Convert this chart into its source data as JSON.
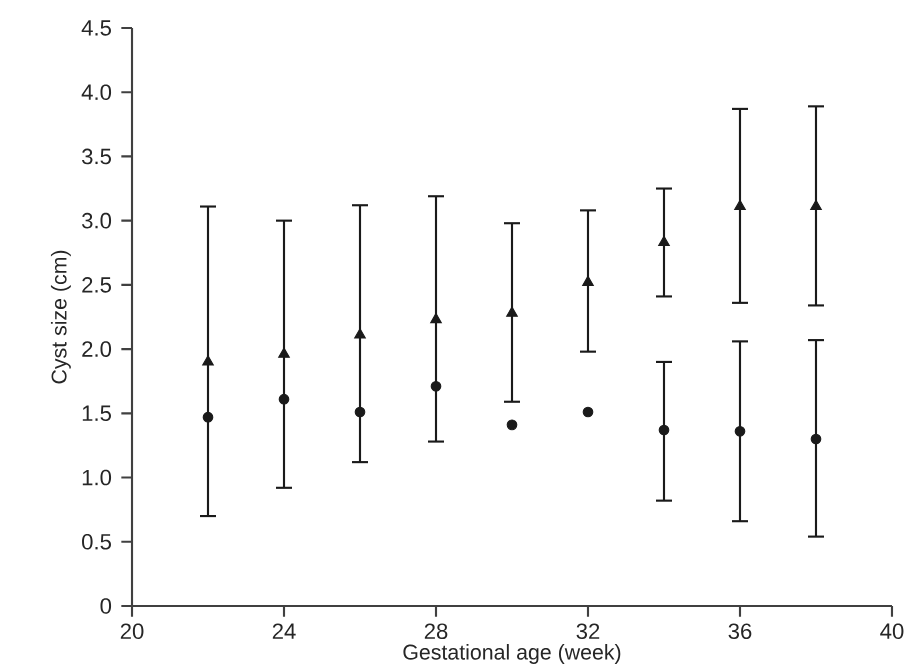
{
  "chart_data": {
    "type": "scatter",
    "xlabel": "Gestational age (week)",
    "ylabel": "Cyst size (cm)",
    "x": [
      22,
      24,
      26,
      28,
      30,
      32,
      34,
      36,
      38
    ],
    "series": [
      {
        "color": "#1a1a1a",
        "marker": "triangle",
        "values": [
          1.9,
          1.96,
          2.11,
          2.23,
          2.28,
          2.52,
          2.83,
          3.11,
          3.11
        ],
        "errors": [
          [
            0.7,
            3.11
          ],
          [
            0.92,
            3.0
          ],
          [
            1.12,
            3.12
          ],
          [
            1.28,
            3.19
          ],
          [
            1.59,
            2.98
          ],
          [
            1.98,
            3.08
          ],
          [
            2.41,
            3.25
          ],
          [
            2.36,
            3.87
          ],
          [
            2.34,
            3.89
          ]
        ]
      },
      {
        "color": "#1a1a1a",
        "marker": "circle",
        "values": [
          1.47,
          1.61,
          1.51,
          1.71,
          1.41,
          1.51,
          1.37,
          1.36,
          1.3
        ],
        "errors": [
          null,
          null,
          null,
          null,
          null,
          null,
          [
            0.82,
            1.9
          ],
          [
            0.66,
            2.06
          ],
          [
            0.54,
            2.07
          ]
        ]
      }
    ],
    "xlim": [
      20,
      40
    ],
    "xticks": [
      20,
      24,
      28,
      32,
      36,
      40
    ],
    "ylim": [
      0,
      4.5
    ],
    "yticks": [
      0,
      0.5,
      {
        "value": 1,
        "label": "1.0"
      },
      1.5,
      {
        "value": 2,
        "label": "2.0"
      },
      2.5,
      {
        "value": 3,
        "label": "3.0"
      },
      3.5,
      {
        "value": 4,
        "label": "4.0"
      },
      4.5
    ],
    "grid": false
  }
}
